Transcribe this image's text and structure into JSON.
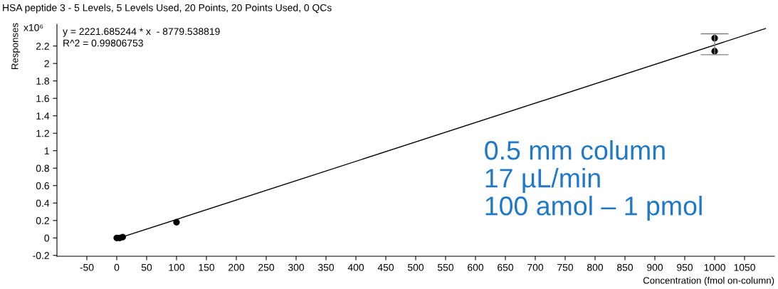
{
  "chart_data": {
    "type": "scatter",
    "title": "HSA peptide 3 - 5 Levels, 5 Levels Used, 20 Points, 20 Points Used, 0 QCs",
    "xlabel": "Concentration (fmol on-column)",
    "ylabel": "Responses",
    "series": [
      {
        "type": "line",
        "color": "#000000",
        "x": [
          0,
          1085
        ],
        "values": [
          -0.01,
          2.4
        ]
      },
      {
        "color": "#000000",
        "marker": "circle",
        "x": [
          0,
          1,
          5,
          10,
          100,
          1000,
          1000
        ],
        "values": [
          0.0,
          null,
          0.0,
          0.01,
          0.18,
          2.29,
          2.14
        ],
        "errors": [
          null,
          null,
          null,
          null,
          null,
          [
            2.1,
            2.34
          ],
          null
        ]
      }
    ],
    "xlim": [
      -100,
      1100
    ],
    "ylim": [
      -0.21,
      2.45
    ],
    "xticks": [
      -50,
      0,
      50,
      100,
      150,
      200,
      250,
      300,
      350,
      400,
      450,
      500,
      550,
      600,
      650,
      700,
      750,
      800,
      850,
      900,
      950,
      1000,
      1050
    ],
    "yticks": [
      -0.2,
      0,
      0.2,
      0.4,
      0.6,
      0.8,
      1,
      1.2,
      1.4,
      1.6,
      1.8,
      2,
      2.2
    ],
    "grid": false,
    "legend": false,
    "annotations": [
      "x10⁶",
      "y = 2221.685244 * x  - 8779.538819",
      "R^2 = 0.99806753",
      "0.5 mm column\n17 µL/min\n100 amol – 1 pmol"
    ]
  }
}
